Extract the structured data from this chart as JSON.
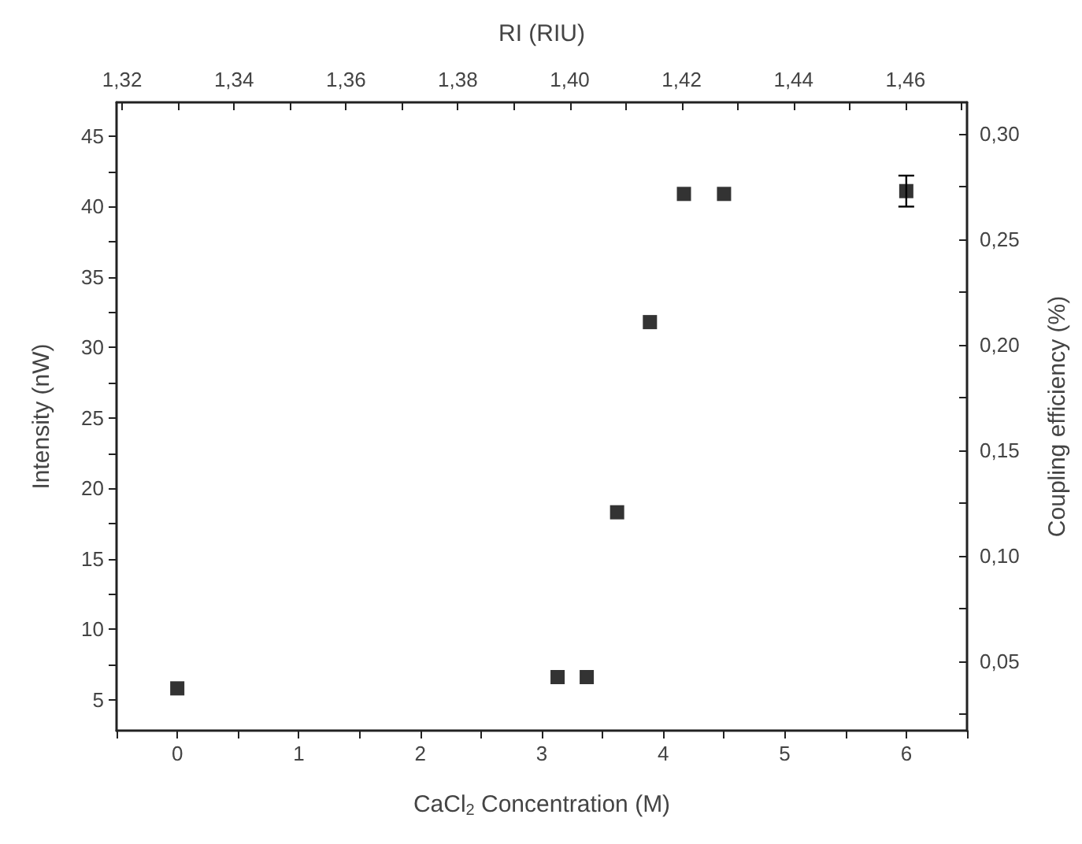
{
  "chart_data": {
    "type": "scatter",
    "xlabel": "CaCl$_{2}$ Concentration (M)",
    "ylabel": "Intensity (nW)",
    "y2label": "Coupling efficiency (%)",
    "x2label": "RI (RIU)",
    "x": [
      0,
      3.13,
      3.37,
      3.62,
      3.89,
      4.17,
      4.5,
      6
    ],
    "series": [
      {
        "color": "#000000",
        "values": [
          5.8,
          6.6,
          6.6,
          18.3,
          31.8,
          40.9,
          40.9,
          41.1
        ],
        "errors": [
          null,
          null,
          null,
          null,
          null,
          null,
          null,
          1.1
        ]
      }
    ],
    "marker": "square",
    "grid": false,
    "xlim": [
      -0.5,
      6.5
    ],
    "xticks": [
      {
        "value": -0.5,
        "label": null
      },
      0,
      {
        "value": 0.5,
        "label": null
      },
      1,
      {
        "value": 1.5,
        "label": null
      },
      2,
      {
        "value": 2.5,
        "label": null
      },
      3,
      {
        "value": 3.5,
        "label": null
      },
      4,
      {
        "value": 4.5,
        "label": null
      },
      5,
      {
        "value": 5.5,
        "label": null
      },
      6,
      {
        "value": 6.5,
        "label": null
      }
    ],
    "ylim": [
      2.8,
      47.4
    ],
    "yticks": [
      5,
      {
        "value": 7.5,
        "label": null
      },
      10,
      {
        "value": 12.5,
        "label": null
      },
      15,
      {
        "value": 17.5,
        "label": null
      },
      20,
      {
        "value": 22.5,
        "label": null
      },
      25,
      {
        "value": 27.5,
        "label": null
      },
      30,
      {
        "value": 32.5,
        "label": null
      },
      35,
      {
        "value": 37.5,
        "label": null
      },
      40,
      {
        "value": 42.5,
        "label": null
      },
      45
    ],
    "y2lim": [
      0.017,
      0.315
    ],
    "y2ticks": [
      {
        "value": 0.025,
        "label": null
      },
      {
        "value": 0.05,
        "label": "0,05"
      },
      {
        "value": 0.075,
        "label": null
      },
      {
        "value": 0.1,
        "label": "0,10"
      },
      {
        "value": 0.125,
        "label": null
      },
      {
        "value": 0.15,
        "label": "0,15"
      },
      {
        "value": 0.175,
        "label": null
      },
      {
        "value": 0.2,
        "label": "0,20"
      },
      {
        "value": 0.225,
        "label": null
      },
      {
        "value": 0.25,
        "label": "0,25"
      },
      {
        "value": 0.275,
        "label": null
      },
      {
        "value": 0.3,
        "label": "0,30"
      }
    ],
    "x2lim": [
      1.319,
      1.471
    ],
    "x2ticks": [
      {
        "value": 1.32,
        "label": "1,32"
      },
      {
        "value": 1.33,
        "label": null
      },
      {
        "value": 1.34,
        "label": "1,34"
      },
      {
        "value": 1.35,
        "label": null
      },
      {
        "value": 1.36,
        "label": "1,36"
      },
      {
        "value": 1.37,
        "label": null
      },
      {
        "value": 1.38,
        "label": "1,38"
      },
      {
        "value": 1.39,
        "label": null
      },
      {
        "value": 1.4,
        "label": "1,40"
      },
      {
        "value": 1.41,
        "label": null
      },
      {
        "value": 1.42,
        "label": "1,42"
      },
      {
        "value": 1.43,
        "label": null
      },
      {
        "value": 1.44,
        "label": "1,44"
      },
      {
        "value": 1.45,
        "label": null
      },
      {
        "value": 1.46,
        "label": "1,46"
      },
      {
        "value": 1.47,
        "label": null
      }
    ]
  }
}
